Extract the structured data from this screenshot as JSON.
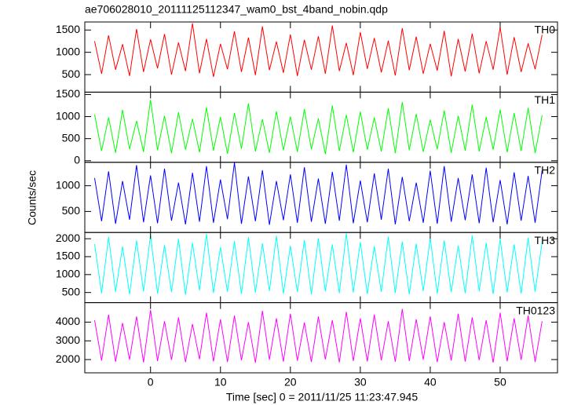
{
  "chart_data": {
    "type": "line",
    "title": "ae706028010_20111125112347_wam0_bst_4band_nobin.qdp",
    "xlabel": "Time [sec] 0 = 2011/11/25 11:23:47.945",
    "ylabel": "Counts/sec",
    "xlim": [
      -9.4,
      58.2
    ],
    "xticks": [
      0,
      10,
      20,
      30,
      40,
      50
    ],
    "x": [
      -8,
      -7,
      -6,
      -5,
      -4,
      -3,
      -2,
      -1,
      0,
      1,
      2,
      3,
      4,
      5,
      6,
      7,
      8,
      9,
      10,
      11,
      12,
      13,
      14,
      15,
      16,
      17,
      18,
      19,
      20,
      21,
      22,
      23,
      24,
      25,
      26,
      27,
      28,
      29,
      30,
      31,
      32,
      33,
      34,
      35,
      36,
      37,
      38,
      39,
      40,
      41,
      42,
      43,
      44,
      45,
      46,
      47,
      48,
      49,
      50,
      51,
      52,
      53,
      54,
      55,
      56
    ],
    "series": [
      {
        "name": "TH0",
        "color": "#ff0000",
        "ylim": [
          107,
          1680
        ],
        "yticks": [
          500,
          1000,
          1500
        ],
        "values": [
          1250,
          520,
          1380,
          610,
          1180,
          470,
          1520,
          560,
          1290,
          640,
          1410,
          500,
          1220,
          580,
          1650,
          530,
          1300,
          450,
          1190,
          620,
          1470,
          560,
          1330,
          490,
          1580,
          600,
          1240,
          540,
          1400,
          470,
          1280,
          610,
          1360,
          520,
          1600,
          580,
          1210,
          490,
          1450,
          630,
          1320,
          550,
          1260,
          480,
          1540,
          600,
          1350,
          520,
          1190,
          590,
          1480,
          460,
          1300,
          570,
          1420,
          530,
          1250,
          610,
          1560,
          500,
          1340,
          560,
          1200,
          620,
          1390
        ]
      },
      {
        "name": "TH1",
        "color": "#00ff00",
        "ylim": [
          -36,
          1554
        ],
        "yticks": [
          0,
          500,
          1000,
          1500
        ],
        "values": [
          1050,
          220,
          980,
          180,
          1150,
          260,
          900,
          200,
          1380,
          240,
          1020,
          170,
          1100,
          250,
          950,
          190,
          1210,
          230,
          990,
          160,
          1080,
          270,
          1300,
          210,
          940,
          180,
          1120,
          240,
          1000,
          200,
          1170,
          260,
          960,
          150,
          1250,
          220,
          1040,
          190,
          1110,
          250,
          980,
          210,
          1190,
          170,
          1330,
          240,
          1060,
          200,
          930,
          260,
          1140,
          180,
          1020,
          230,
          1270,
          210,
          990,
          250,
          1160,
          190,
          1080,
          220,
          1200,
          170,
          1030
        ]
      },
      {
        "name": "TH2",
        "color": "#0000ff",
        "ylim": [
          91,
          1455
        ],
        "yticks": [
          500,
          1000
        ],
        "values": [
          1150,
          310,
          1280,
          260,
          1090,
          340,
          1400,
          290,
          1200,
          270,
          1330,
          320,
          1060,
          250,
          1250,
          300,
          1380,
          280,
          1120,
          350,
          1450,
          260,
          1180,
          310,
          1300,
          240,
          1090,
          330,
          1220,
          280,
          1360,
          300,
          1140,
          260,
          1270,
          320,
          1410,
          270,
          1100,
          290,
          1240,
          340,
          1330,
          250,
          1170,
          310,
          1060,
          280,
          1290,
          260,
          1380,
          300,
          1150,
          330,
          1220,
          270,
          1350,
          290,
          1110,
          250,
          1260,
          320,
          1190,
          280,
          1300
        ]
      },
      {
        "name": "TH3",
        "color": "#00ffff",
        "ylim": [
          217,
          2174
        ],
        "yticks": [
          500,
          1000,
          1500,
          2000
        ],
        "values": [
          1850,
          480,
          2050,
          520,
          1780,
          450,
          1950,
          530,
          2100,
          470,
          1820,
          510,
          1990,
          440,
          1880,
          560,
          2130,
          490,
          1760,
          520,
          1930,
          460,
          2040,
          500,
          1870,
          540,
          2080,
          470,
          1800,
          510,
          1960,
          450,
          2010,
          530,
          1840,
          480,
          2150,
          500,
          1900,
          460,
          1790,
          520,
          2060,
          490,
          1920,
          450,
          1860,
          540,
          2020,
          470,
          1950,
          510,
          1810,
          480,
          2090,
          530,
          1880,
          460,
          1990,
          500,
          1840,
          470,
          2030,
          520,
          1910
        ]
      },
      {
        "name": "TH0123",
        "color": "#ff00ff",
        "ylim": [
          1292,
          5040
        ],
        "yticks": [
          2000,
          3000,
          4000
        ],
        "values": [
          4100,
          1950,
          4400,
          1880,
          3950,
          2000,
          4300,
          1850,
          4650,
          1920,
          4050,
          1980,
          4250,
          1860,
          3900,
          2020,
          4500,
          1900,
          4150,
          1870,
          4350,
          1960,
          4000,
          1830,
          4600,
          1990,
          4200,
          1890,
          4450,
          1940,
          3980,
          1870,
          4300,
          2010,
          4100,
          1850,
          4550,
          1930,
          4200,
          1900,
          4400,
          1960,
          4050,
          1880,
          4700,
          1920,
          4150,
          2000,
          4300,
          1860,
          4000,
          1950,
          4450,
          1890,
          4250,
          1970,
          4100,
          1840,
          4500,
          1910,
          4200,
          1980,
          4350,
          1870,
          4050
        ]
      }
    ]
  }
}
